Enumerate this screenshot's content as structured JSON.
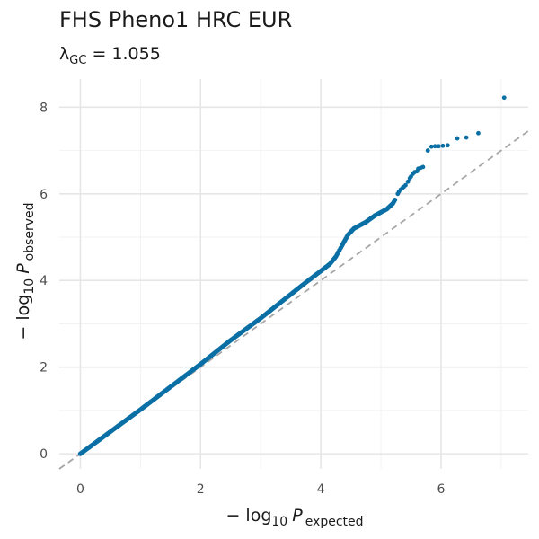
{
  "chart_data": {
    "type": "scatter",
    "title": "FHS Pheno1 HRC EUR",
    "subtitle": {
      "symbol": "λ",
      "subscript": "GC",
      "text": " = 1.055"
    },
    "xlabel": {
      "prefix": "− log",
      "base": "10",
      "var": "P",
      "subscript": "expected"
    },
    "ylabel": {
      "prefix": "− log",
      "base": "10",
      "var": "P",
      "subscript": "observed"
    },
    "xlim": [
      -0.35,
      7.45
    ],
    "ylim": [
      -0.35,
      8.65
    ],
    "xticks": [
      0,
      2,
      4,
      6
    ],
    "yticks": [
      0,
      2,
      4,
      6,
      8
    ],
    "grid": true,
    "point_color": "#0a6fa5",
    "reference_line": {
      "slope": 1,
      "intercept": 0,
      "style": "dashed",
      "color": "#a6a6a6"
    },
    "curve": [
      [
        0,
        0
      ],
      [
        1,
        1.02
      ],
      [
        2,
        2.07
      ],
      [
        2.5,
        2.62
      ],
      [
        3,
        3.13
      ],
      [
        3.5,
        3.68
      ],
      [
        3.7,
        3.9
      ],
      [
        4,
        4.22
      ],
      [
        4.15,
        4.38
      ],
      [
        4.25,
        4.55
      ],
      [
        4.35,
        4.8
      ],
      [
        4.45,
        5.05
      ],
      [
        4.55,
        5.2
      ],
      [
        4.75,
        5.35
      ],
      [
        4.9,
        5.5
      ],
      [
        5.1,
        5.65
      ],
      [
        5.2,
        5.78
      ],
      [
        5.25,
        5.9
      ]
    ],
    "points": [
      [
        5.28,
        6.0
      ],
      [
        5.3,
        6.05
      ],
      [
        5.33,
        6.1
      ],
      [
        5.36,
        6.14
      ],
      [
        5.38,
        6.16
      ],
      [
        5.41,
        6.2
      ],
      [
        5.45,
        6.28
      ],
      [
        5.48,
        6.36
      ],
      [
        5.5,
        6.4
      ],
      [
        5.53,
        6.46
      ],
      [
        5.56,
        6.5
      ],
      [
        5.6,
        6.52
      ],
      [
        5.62,
        6.58
      ],
      [
        5.66,
        6.6
      ],
      [
        5.7,
        6.62
      ],
      [
        5.78,
        7.0
      ],
      [
        5.84,
        7.09
      ],
      [
        5.9,
        7.1
      ],
      [
        5.96,
        7.1
      ],
      [
        6.03,
        7.11
      ],
      [
        6.11,
        7.12
      ],
      [
        6.27,
        7.28
      ],
      [
        6.42,
        7.3
      ],
      [
        6.62,
        7.4
      ],
      [
        7.05,
        8.22
      ]
    ]
  }
}
